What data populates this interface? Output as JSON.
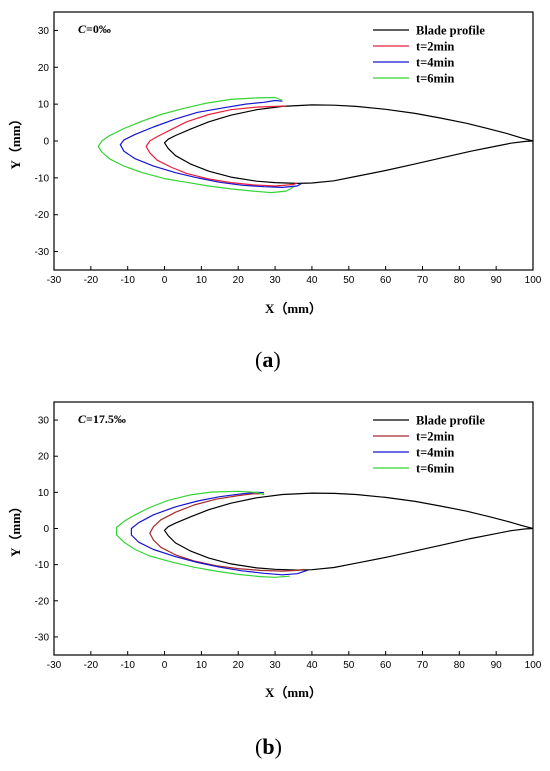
{
  "chart_data": [
    {
      "type": "line",
      "panel_label": "(a)",
      "panel_letter": "a",
      "condition": "C=0‰",
      "condition_var": "C",
      "condition_value": "=0‰",
      "xlabel": "X（mm）",
      "ylabel": "Y（mm）",
      "xlim": [
        -30,
        100
      ],
      "ylim": [
        -35,
        35
      ],
      "xticks": [
        -30,
        -20,
        -10,
        0,
        10,
        20,
        30,
        40,
        50,
        60,
        70,
        80,
        90,
        100
      ],
      "yticks": [
        -30,
        -20,
        -10,
        0,
        10,
        20,
        30
      ],
      "grid": false,
      "legend_position": "top-right",
      "series": [
        {
          "name": "Blade profile",
          "color": "#000000",
          "x": [
            100,
            97,
            93,
            88,
            82,
            75,
            68,
            60,
            52,
            46,
            40,
            32,
            25,
            18,
            12,
            7,
            3,
            1,
            0,
            1,
            3,
            7,
            12,
            18,
            25,
            30,
            36,
            40,
            46,
            52,
            60,
            68,
            76,
            83,
            89,
            94,
            98,
            100
          ],
          "y": [
            0,
            0.8,
            2,
            3.3,
            4.8,
            6.2,
            7.5,
            8.6,
            9.4,
            9.7,
            9.8,
            9.4,
            8.5,
            7,
            5.2,
            3.2,
            1.5,
            0.5,
            -0.5,
            -2,
            -4,
            -6.2,
            -8.2,
            -9.8,
            -10.9,
            -11.3,
            -11.5,
            -11.4,
            -10.8,
            -9.6,
            -8,
            -6.2,
            -4.4,
            -2.8,
            -1.6,
            -0.6,
            -0.1,
            0
          ]
        },
        {
          "name": "t=2min",
          "color": "#e8203a",
          "x": [
            33,
            30,
            25,
            18,
            12,
            6,
            2,
            -2,
            -4,
            -5,
            -4,
            -2,
            2,
            6,
            12,
            18,
            24,
            30,
            35,
            36
          ],
          "y": [
            9.5,
            9.4,
            9.2,
            8.5,
            7.2,
            5.2,
            3.2,
            1.2,
            0,
            -1.5,
            -3.2,
            -5.2,
            -7.2,
            -8.8,
            -10.3,
            -11.3,
            -11.9,
            -12.2,
            -11.8,
            -11.4
          ]
        },
        {
          "name": "t=4min",
          "color": "#1414d2",
          "x": [
            32,
            30,
            27,
            22,
            16,
            9,
            3,
            -3,
            -8,
            -11,
            -12,
            -11,
            -8,
            -3,
            3,
            9,
            15,
            21,
            27,
            32,
            36,
            37
          ],
          "y": [
            10.8,
            11,
            10.5,
            10,
            9,
            7.8,
            6,
            3.8,
            1.8,
            0.3,
            -1,
            -2.8,
            -4.8,
            -6.8,
            -8.6,
            -10,
            -11.2,
            -12,
            -12.4,
            -12.6,
            -12.2,
            -11.6
          ]
        },
        {
          "name": "t=6min",
          "color": "#35d435",
          "x": [
            32,
            30,
            25,
            18,
            11,
            5,
            -1,
            -6,
            -11,
            -15,
            -17,
            -18,
            -17,
            -15,
            -11,
            -6,
            0,
            6,
            12,
            18,
            24,
            29,
            33,
            35
          ],
          "y": [
            11,
            11.8,
            11.7,
            11.3,
            10.2,
            8.8,
            7.2,
            5.4,
            3.4,
            1.4,
            0,
            -1.5,
            -3,
            -4.8,
            -6.8,
            -8.6,
            -10.2,
            -11.2,
            -12.2,
            -13,
            -13.6,
            -14,
            -13.6,
            -12.5
          ]
        }
      ]
    },
    {
      "type": "line",
      "panel_label": "(b)",
      "panel_letter": "b",
      "condition": "C=17.5‰",
      "condition_var": "C",
      "condition_value": "=17.5‰",
      "xlabel": "X（mm）",
      "ylabel": "Y（mm）",
      "xlim": [
        -30,
        100
      ],
      "ylim": [
        -35,
        35
      ],
      "xticks": [
        -30,
        -20,
        -10,
        0,
        10,
        20,
        30,
        40,
        50,
        60,
        70,
        80,
        90,
        100
      ],
      "yticks": [
        -30,
        -20,
        -10,
        0,
        10,
        20,
        30
      ],
      "grid": false,
      "legend_position": "top-right",
      "series": [
        {
          "name": "Blade profile",
          "color": "#000000",
          "x": [
            100,
            97,
            93,
            88,
            82,
            75,
            68,
            60,
            52,
            46,
            40,
            32,
            25,
            18,
            12,
            7,
            3,
            1,
            0,
            1,
            3,
            7,
            12,
            18,
            25,
            30,
            36,
            40,
            46,
            52,
            60,
            68,
            76,
            83,
            89,
            94,
            98,
            100
          ],
          "y": [
            0,
            0.8,
            2,
            3.3,
            4.8,
            6.2,
            7.5,
            8.6,
            9.4,
            9.7,
            9.8,
            9.4,
            8.5,
            7,
            5.2,
            3.2,
            1.5,
            0.5,
            -0.5,
            -2,
            -4,
            -6.2,
            -8.2,
            -9.8,
            -10.9,
            -11.3,
            -11.5,
            -11.4,
            -10.8,
            -9.6,
            -8,
            -6.2,
            -4.4,
            -2.8,
            -1.6,
            -0.6,
            -0.1,
            0
          ]
        },
        {
          "name": "t=2min",
          "color": "#a52a2a",
          "x": [
            26,
            24,
            20,
            14,
            8,
            3,
            -1,
            -3,
            -4,
            -3,
            -1,
            3,
            8,
            14,
            20,
            26,
            32,
            36,
            38
          ],
          "y": [
            9.6,
            9.6,
            9.1,
            8.1,
            6.5,
            4.5,
            2.4,
            0.5,
            -1.3,
            -3.2,
            -5.2,
            -7.3,
            -9,
            -10.3,
            -11.1,
            -11.6,
            -11.8,
            -11.6,
            -11.3
          ]
        },
        {
          "name": "t=4min",
          "color": "#1414d2",
          "x": [
            27,
            25,
            21,
            15,
            9,
            3,
            -3,
            -7,
            -9,
            -9,
            -7,
            -3,
            3,
            9,
            15,
            21,
            27,
            32,
            36,
            39
          ],
          "y": [
            9.9,
            10,
            9.6,
            8.8,
            7.6,
            6,
            3.8,
            1.6,
            0,
            -1.8,
            -3.8,
            -5.8,
            -7.8,
            -9.4,
            -10.7,
            -11.7,
            -12.4,
            -12.8,
            -12.5,
            -11.5
          ]
        },
        {
          "name": "t=6min",
          "color": "#35d435",
          "x": [
            27,
            25,
            20,
            13,
            7,
            1,
            -4,
            -8,
            -11,
            -13,
            -13,
            -11,
            -8,
            -4,
            2,
            8,
            14,
            20,
            26,
            30,
            34
          ],
          "y": [
            9.4,
            10,
            10.3,
            10.1,
            9.3,
            7.8,
            5.8,
            3.8,
            2,
            0.3,
            -1.8,
            -3.8,
            -5.8,
            -7.6,
            -9.3,
            -10.7,
            -11.8,
            -12.7,
            -13.3,
            -13.5,
            -13.2
          ]
        }
      ]
    }
  ]
}
